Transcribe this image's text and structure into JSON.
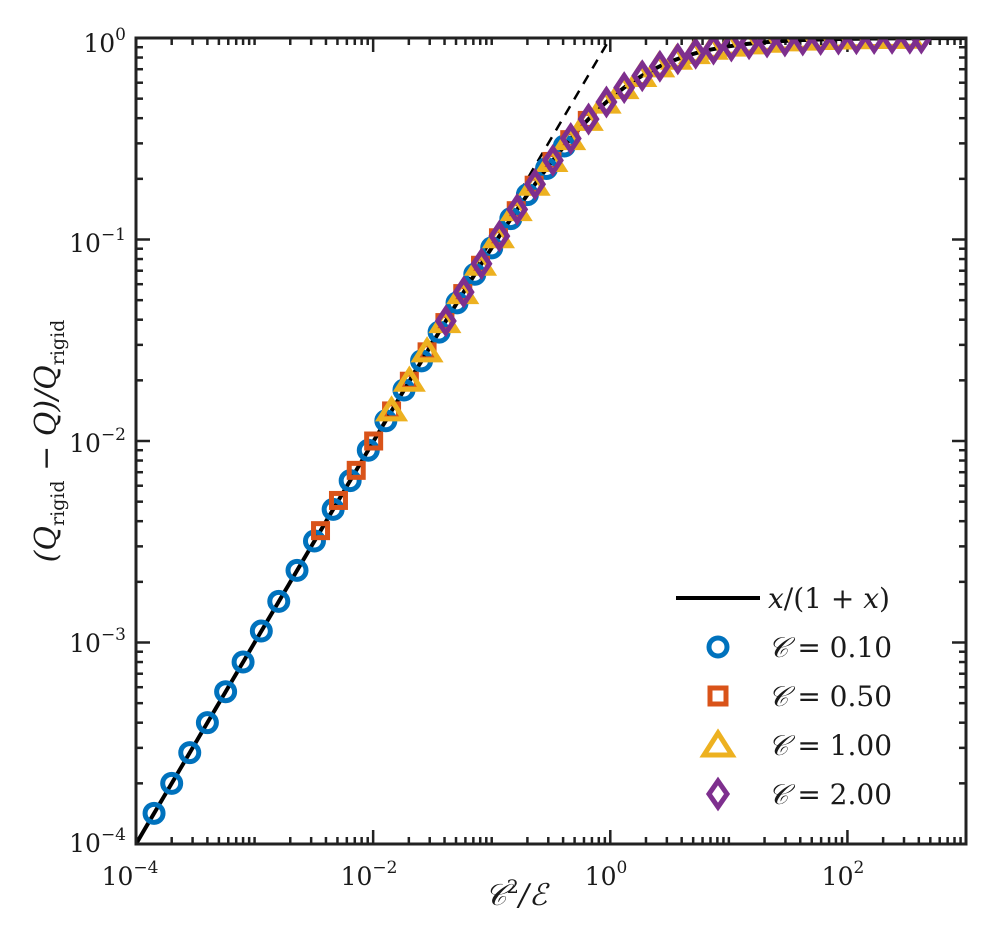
{
  "chart_data": {
    "type": "scatter",
    "title": "",
    "x_scale": "log",
    "y_scale": "log",
    "xlim": [
      0.0001,
      1000
    ],
    "ylim": [
      0.0001,
      1
    ],
    "x_major_ticks": [
      {
        "value": 0.0001,
        "base": "10",
        "exp": "−4"
      },
      {
        "value": 0.01,
        "base": "10",
        "exp": "−2"
      },
      {
        "value": 1,
        "base": "10",
        "exp": "0"
      },
      {
        "value": 100,
        "base": "10",
        "exp": "2"
      }
    ],
    "y_major_ticks": [
      {
        "value": 0.0001,
        "base": "10",
        "exp": "−4"
      },
      {
        "value": 0.001,
        "base": "10",
        "exp": "−3"
      },
      {
        "value": 0.01,
        "base": "10",
        "exp": "−2"
      },
      {
        "value": 0.1,
        "base": "10",
        "exp": "−1"
      },
      {
        "value": 1,
        "base": "10",
        "exp": "0"
      }
    ],
    "xlabel": {
      "main": "𝒞",
      "sup": "2",
      "rest": "/ℰ"
    },
    "ylabel": {
      "open": "(Q",
      "sub1": "rigid",
      "mid": " − Q)/Q",
      "sub2": "rigid"
    },
    "reference_lines": [
      {
        "name": "asymptote-line",
        "label": "",
        "style": "dashed",
        "formula": "y = x",
        "x_range": [
          0.0001,
          1
        ]
      },
      {
        "name": "saturation-line",
        "label": "",
        "style": "dotted",
        "formula": "y = 1",
        "x_range": [
          0.0001,
          1000
        ]
      }
    ],
    "fit_curve": {
      "label": "x/(1 + x)",
      "formula": "y = x/(1+x)",
      "x_range": [
        0.0001,
        1000
      ],
      "color": "#000000"
    },
    "series": [
      {
        "name": "𝒞 = 0.10",
        "marker": "circle",
        "color": "#0072BD",
        "x": [
          0.000142,
          0.0002,
          0.000284,
          0.0004,
          0.00057,
          0.0008,
          0.00114,
          0.0016,
          0.00228,
          0.0032,
          0.0046,
          0.0064,
          0.0091,
          0.0128,
          0.0182,
          0.0256,
          0.036,
          0.051,
          0.072,
          0.1,
          0.145,
          0.2,
          0.29,
          0.41
        ],
        "y": [
          0.000142,
          0.0002,
          0.000284,
          0.0004,
          0.00057,
          0.0008,
          0.00114,
          0.0016,
          0.00228,
          0.00319,
          0.00458,
          0.00636,
          0.009,
          0.0126,
          0.0179,
          0.025,
          0.0347,
          0.0485,
          0.0672,
          0.0909,
          0.127,
          0.167,
          0.225,
          0.291
        ]
      },
      {
        "name": "𝒞 = 0.50",
        "marker": "square",
        "color": "#D95319",
        "x": [
          0.0036,
          0.0051,
          0.0072,
          0.0101,
          0.0143,
          0.0202,
          0.0285,
          0.0403,
          0.057,
          0.0805,
          0.114,
          0.161,
          0.228,
          0.322,
          0.455,
          0.64
        ],
        "y": [
          0.00359,
          0.00507,
          0.00715,
          0.01,
          0.0141,
          0.0198,
          0.0277,
          0.0387,
          0.0539,
          0.0745,
          0.102,
          0.139,
          0.186,
          0.244,
          0.313,
          0.39
        ]
      },
      {
        "name": "𝒞 = 1.00",
        "marker": "triangle",
        "color": "#EDB120",
        "x": [
          0.0143,
          0.0202,
          0.0285,
          0.0403,
          0.057,
          0.0805,
          0.114,
          0.161,
          0.228,
          0.322,
          0.455,
          0.64,
          0.905,
          1.28,
          1.81,
          2.56,
          3.62,
          5.12,
          7.24,
          10.2,
          14.5,
          20.5,
          29,
          41,
          58,
          82,
          116,
          164,
          232,
          328
        ],
        "y": [
          0.0141,
          0.0198,
          0.0277,
          0.0387,
          0.0539,
          0.0745,
          0.102,
          0.139,
          0.186,
          0.244,
          0.313,
          0.39,
          0.475,
          0.561,
          0.644,
          0.719,
          0.784,
          0.837,
          0.879,
          0.911,
          0.935,
          0.953,
          0.967,
          0.976,
          0.983,
          0.988,
          0.991,
          0.994,
          0.996,
          0.997
        ]
      },
      {
        "name": "𝒞 = 2.00",
        "marker": "diamond",
        "color": "#7E2F8E",
        "x": [
          0.041,
          0.058,
          0.082,
          0.116,
          0.164,
          0.232,
          0.328,
          0.464,
          0.656,
          0.928,
          1.31,
          1.86,
          2.62,
          3.71,
          5.25,
          7.42,
          10.5,
          14.8,
          21,
          29.7,
          42,
          59.4,
          84,
          119,
          168,
          238,
          336,
          420
        ],
        "y": [
          0.0394,
          0.0548,
          0.0758,
          0.104,
          0.141,
          0.188,
          0.247,
          0.317,
          0.396,
          0.481,
          0.567,
          0.65,
          0.724,
          0.788,
          0.84,
          0.881,
          0.913,
          0.937,
          0.955,
          0.967,
          0.977,
          0.983,
          0.988,
          0.992,
          0.994,
          0.996,
          0.997,
          0.998
        ]
      }
    ],
    "legend": {
      "position": "bottom-right",
      "entries": [
        {
          "symbol": "line",
          "color": "#000000",
          "label_italic": "x",
          "label_rest": "/(1 + ",
          "label_italic2": "x",
          "label_end": ")"
        },
        {
          "symbol": "circle",
          "color": "#0072BD",
          "label_italic": "𝒞",
          "label_rest": " = 0.10"
        },
        {
          "symbol": "square",
          "color": "#D95319",
          "label_italic": "𝒞",
          "label_rest": " = 0.50"
        },
        {
          "symbol": "triangle",
          "color": "#EDB120",
          "label_italic": "𝒞",
          "label_rest": " = 1.00"
        },
        {
          "symbol": "diamond",
          "color": "#7E2F8E",
          "label_italic": "𝒞",
          "label_rest": " = 2.00"
        }
      ]
    },
    "grid": false
  }
}
